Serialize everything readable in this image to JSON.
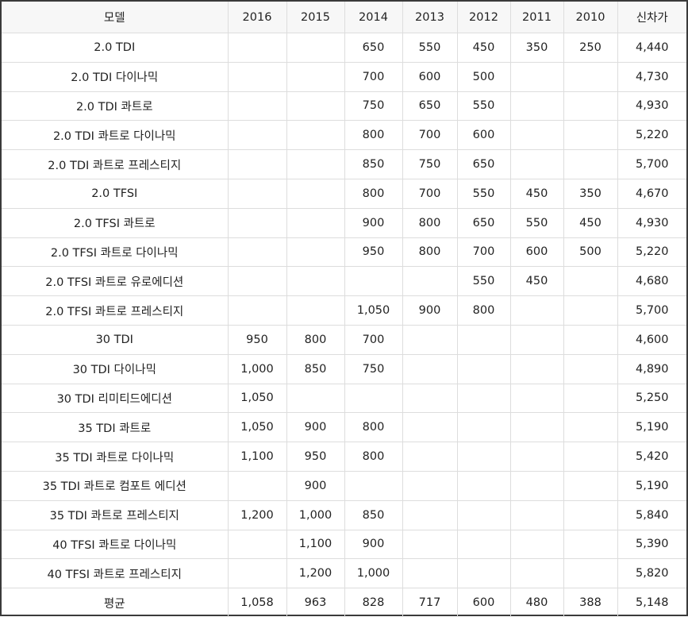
{
  "table": {
    "headers": [
      "모델",
      "2016",
      "2015",
      "2014",
      "2013",
      "2012",
      "2011",
      "2010",
      "신차가"
    ],
    "rows": [
      [
        "2.0 TDI",
        "",
        "",
        "650",
        "550",
        "450",
        "350",
        "250",
        "4,440"
      ],
      [
        "2.0 TDI 다이나믹",
        "",
        "",
        "700",
        "600",
        "500",
        "",
        "",
        "4,730"
      ],
      [
        "2.0 TDI 콰트로",
        "",
        "",
        "750",
        "650",
        "550",
        "",
        "",
        "4,930"
      ],
      [
        "2.0 TDI 콰트로 다이나믹",
        "",
        "",
        "800",
        "700",
        "600",
        "",
        "",
        "5,220"
      ],
      [
        "2.0 TDI 콰트로 프레스티지",
        "",
        "",
        "850",
        "750",
        "650",
        "",
        "",
        "5,700"
      ],
      [
        "2.0 TFSI",
        "",
        "",
        "800",
        "700",
        "550",
        "450",
        "350",
        "4,670"
      ],
      [
        "2.0 TFSI 콰트로",
        "",
        "",
        "900",
        "800",
        "650",
        "550",
        "450",
        "4,930"
      ],
      [
        "2.0 TFSI 콰트로 다이나믹",
        "",
        "",
        "950",
        "800",
        "700",
        "600",
        "500",
        "5,220"
      ],
      [
        "2.0 TFSI 콰트로 유로에디션",
        "",
        "",
        "",
        "",
        "550",
        "450",
        "",
        "4,680"
      ],
      [
        "2.0 TFSI 콰트로 프레스티지",
        "",
        "",
        "1,050",
        "900",
        "800",
        "",
        "",
        "5,700"
      ],
      [
        "30 TDI",
        "950",
        "800",
        "700",
        "",
        "",
        "",
        "",
        "4,600"
      ],
      [
        "30 TDI 다이나믹",
        "1,000",
        "850",
        "750",
        "",
        "",
        "",
        "",
        "4,890"
      ],
      [
        "30 TDI 리미티드에디션",
        "1,050",
        "",
        "",
        "",
        "",
        "",
        "",
        "5,250"
      ],
      [
        "35 TDI 콰트로",
        "1,050",
        "900",
        "800",
        "",
        "",
        "",
        "",
        "5,190"
      ],
      [
        "35 TDI 콰트로 다이나믹",
        "1,100",
        "950",
        "800",
        "",
        "",
        "",
        "",
        "5,420"
      ],
      [
        "35 TDI 콰트로 컴포트 에디션",
        "",
        "900",
        "",
        "",
        "",
        "",
        "",
        "5,190"
      ],
      [
        "35 TDI 콰트로 프레스티지",
        "1,200",
        "1,000",
        "850",
        "",
        "",
        "",
        "",
        "5,840"
      ],
      [
        "40 TFSI 콰트로 다이나믹",
        "",
        "1,100",
        "900",
        "",
        "",
        "",
        "",
        "5,390"
      ],
      [
        "40 TFSI 콰트로 프레스티지",
        "",
        "1,200",
        "1,000",
        "",
        "",
        "",
        "",
        "5,820"
      ],
      [
        "평균",
        "1,058",
        "963",
        "828",
        "717",
        "600",
        "480",
        "388",
        "5,148"
      ]
    ]
  },
  "colors": {
    "header_bg": "#f7f7f7",
    "grid_line": "#dddddd",
    "outer_border": "#3a3a3a",
    "text": "#222222"
  }
}
